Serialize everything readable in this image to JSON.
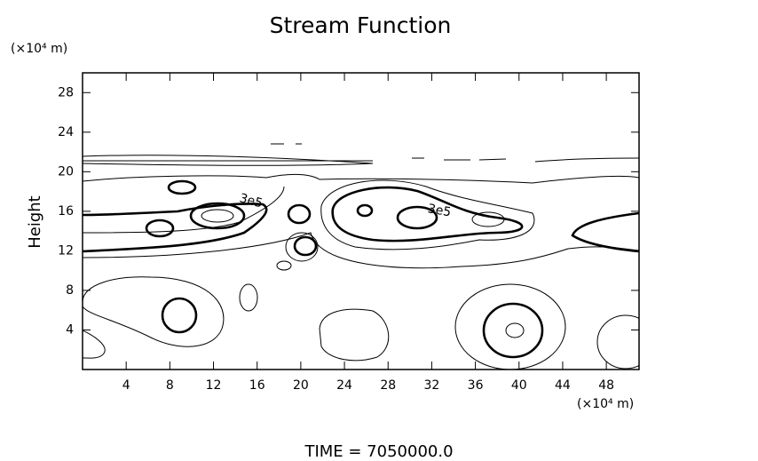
{
  "chart_data": {
    "type": "contour",
    "title": "Stream Function",
    "x_unit": "(×10⁴ m)",
    "y_unit": "(×10⁴ m)",
    "ylabel": "Height",
    "footer": "TIME = 7050000.0",
    "xlim": [
      0,
      51
    ],
    "xticks": [
      4,
      8,
      12,
      16,
      20,
      24,
      28,
      32,
      36,
      40,
      44,
      48
    ],
    "ylim": [
      0,
      30
    ],
    "yticks": [
      4,
      8,
      12,
      16,
      20,
      24,
      28
    ],
    "contour_labels": [
      "3e5",
      "3e5"
    ]
  }
}
